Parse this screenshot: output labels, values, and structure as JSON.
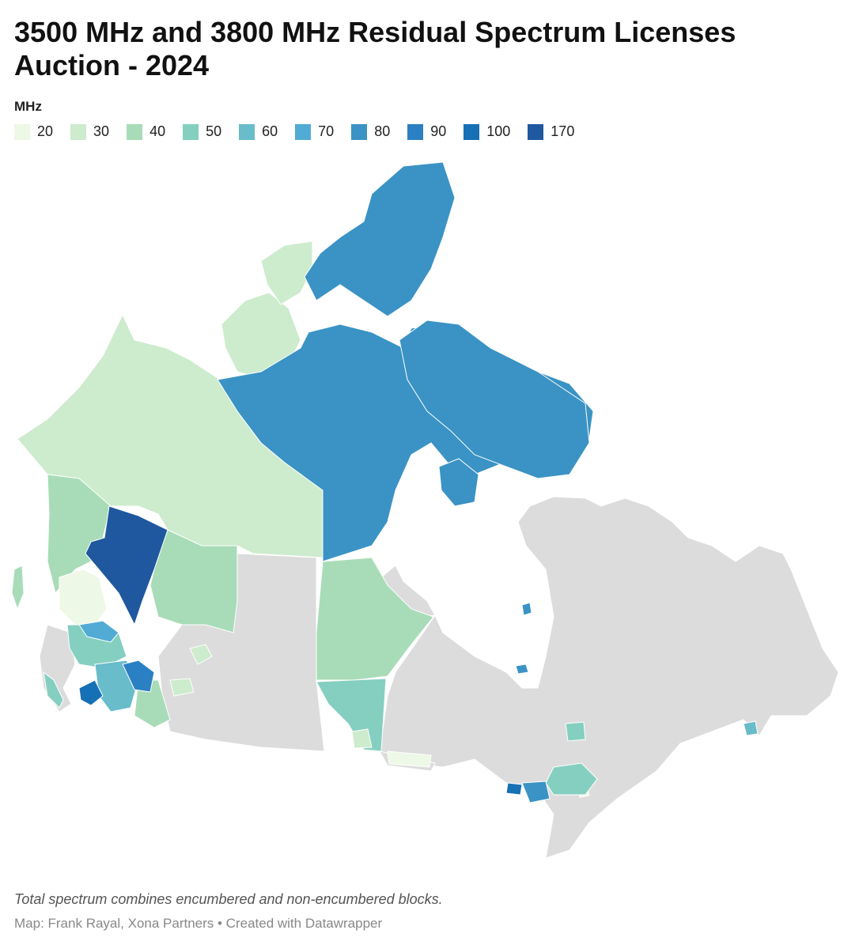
{
  "title": "3500 MHz and 3800 MHz Residual Spectrum Licenses Auction - 2024",
  "legend": {
    "title": "MHz",
    "items": [
      {
        "label": "20",
        "color": "#edf8e6"
      },
      {
        "label": "30",
        "color": "#cdebcd"
      },
      {
        "label": "40",
        "color": "#a8dcb8"
      },
      {
        "label": "50",
        "color": "#85cfc0"
      },
      {
        "label": "60",
        "color": "#69bcca"
      },
      {
        "label": "70",
        "color": "#51abd4"
      },
      {
        "label": "80",
        "color": "#3a93c4"
      },
      {
        "label": "90",
        "color": "#2b80c3"
      },
      {
        "label": "100",
        "color": "#1570b5"
      },
      {
        "label": "170",
        "color": "#1f589e"
      }
    ]
  },
  "no_data_color": "#dcdcdc",
  "footer": {
    "note": "Total spectrum combines encumbered and non-encumbered blocks.",
    "source": "Map: Frank Rayal, Xona Partners • Created with Datawrapper"
  }
}
